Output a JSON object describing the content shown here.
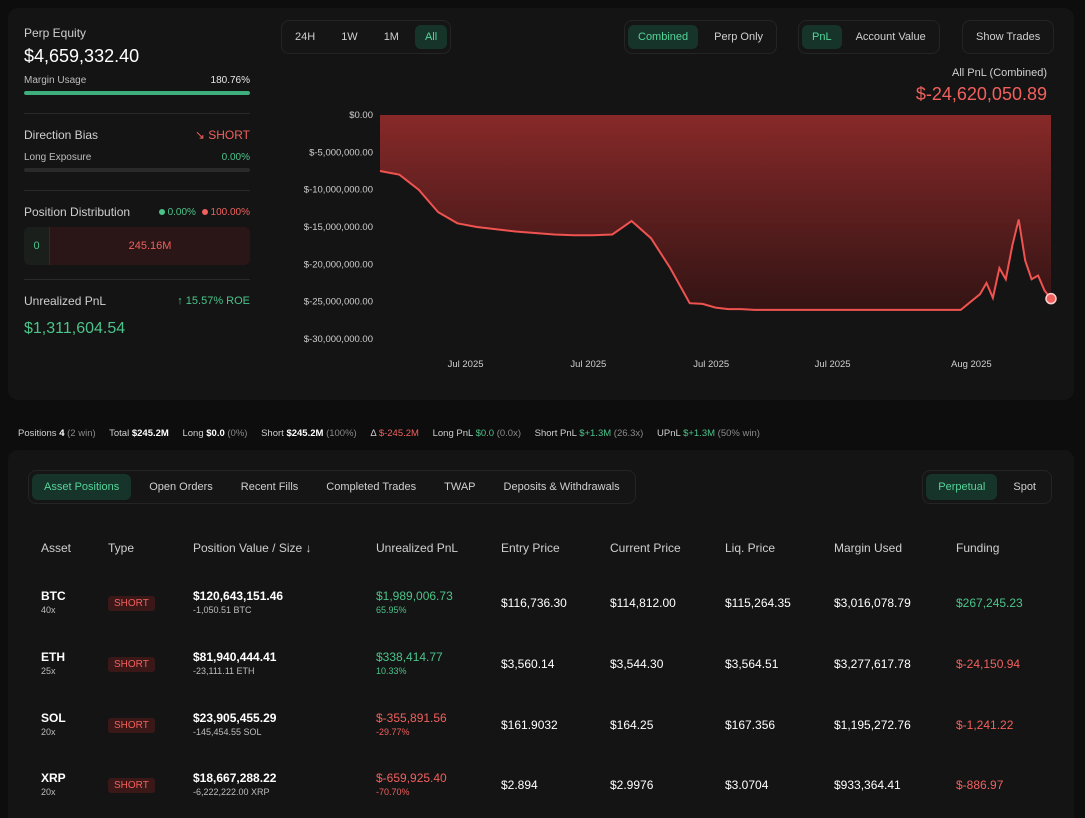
{
  "stats": {
    "perp_equity_label": "Perp Equity",
    "perp_equity_value": "$4,659,332.40",
    "margin_usage_label": "Margin Usage",
    "margin_usage_value": "180.76%",
    "margin_usage_fill": 1.0,
    "direction_bias_label": "Direction Bias",
    "direction_bias_value": "SHORT",
    "long_exposure_label": "Long Exposure",
    "long_exposure_value": "0.00%",
    "position_distribution_label": "Position Distribution",
    "dist_long_pct": "0.00%",
    "dist_short_pct": "100.00%",
    "dist_long_amount": "0",
    "dist_short_amount": "245.16M",
    "unrealized_pnl_label": "Unrealized PnL",
    "roe": "15.57% ROE",
    "unrealized_pnl_value": "$1,311,604.54"
  },
  "toolbar": {
    "ranges": [
      "24H",
      "1W",
      "1M",
      "All"
    ],
    "active_range": "All",
    "combined": "Combined",
    "perp_only": "Perp Only",
    "pnl": "PnL",
    "account_value": "Account Value",
    "show_trades": "Show Trades"
  },
  "chart_header": {
    "title": "All PnL (Combined)",
    "total": "$-24,620,050.89"
  },
  "chart_data": {
    "type": "area",
    "y_ticks": [
      "$0.00",
      "$-5,000,000.00",
      "$-10,000,000.00",
      "$-15,000,000.00",
      "$-20,000,000.00",
      "$-25,000,000.00",
      "$-30,000,000.00"
    ],
    "x_ticks": [
      "Jul 2025",
      "Jul 2025",
      "Jul 2025",
      "Jul 2025",
      "Aug 2025"
    ],
    "ylim": [
      -30000000,
      0
    ],
    "x": [
      0,
      3,
      6,
      9,
      12,
      15,
      18,
      21,
      24,
      27,
      30,
      33,
      36,
      39,
      42,
      45,
      48,
      50,
      52,
      54,
      56,
      58,
      60,
      62,
      65,
      70,
      75,
      80,
      85,
      90,
      93,
      94,
      95,
      96,
      97,
      98,
      99,
      100,
      101,
      102,
      103,
      104
    ],
    "values": [
      -7500000,
      -8000000,
      -10000000,
      -13000000,
      -14500000,
      -15000000,
      -15300000,
      -15600000,
      -15800000,
      -16000000,
      -16100000,
      -16100000,
      -16000000,
      -14200000,
      -16500000,
      -20500000,
      -25200000,
      -25300000,
      -25800000,
      -26000000,
      -26000000,
      -26100000,
      -26100000,
      -26100000,
      -26100000,
      -26100000,
      -26100000,
      -26100000,
      -26100000,
      -26100000,
      -24000000,
      -22500000,
      -24500000,
      -20500000,
      -22000000,
      -17500000,
      -14000000,
      -19500000,
      -22000000,
      -21500000,
      -23500000,
      -24600000
    ],
    "series_color": "#ef5350"
  },
  "summary": {
    "positions_label": "Positions",
    "positions_count": "4",
    "positions_win": "(2 win)",
    "total_label": "Total",
    "total_value": "$245.2M",
    "long_label": "Long",
    "long_value": "$0.0",
    "long_pct": "(0%)",
    "short_label": "Short",
    "short_value": "$245.2M",
    "short_pct": "(100%)",
    "delta_label": "Δ",
    "delta_value": "$-245.2M",
    "long_pnl_label": "Long PnL",
    "long_pnl_value": "$0.0",
    "long_pnl_x": "(0.0x)",
    "short_pnl_label": "Short PnL",
    "short_pnl_value": "$+1.3M",
    "short_pnl_x": "(26.3x)",
    "upnl_label": "UPnL",
    "upnl_value": "$+1.3M",
    "upnl_win": "(50% win)"
  },
  "tabs": [
    "Asset Positions",
    "Open Orders",
    "Recent Fills",
    "Completed Trades",
    "TWAP",
    "Deposits & Withdrawals"
  ],
  "active_tab": "Asset Positions",
  "market_tabs": [
    "Perpetual",
    "Spot"
  ],
  "active_market": "Perpetual",
  "table": {
    "headers": [
      "Asset",
      "Type",
      "Position Value / Size ↓",
      "Unrealized PnL",
      "Entry Price",
      "Current Price",
      "Liq. Price",
      "Margin Used",
      "Funding"
    ],
    "rows": [
      {
        "asset": "BTC",
        "lev": "40x",
        "type": "SHORT",
        "value": "$120,643,151.46",
        "size": "-1,050.51 BTC",
        "pnl": "$1,989,006.73",
        "pnl_pct": "65.95%",
        "pnl_positive": true,
        "entry": "$116,736.30",
        "current": "$114,812.00",
        "liq": "$115,264.35",
        "margin": "$3,016,078.79",
        "funding": "$267,245.23",
        "funding_positive": true
      },
      {
        "asset": "ETH",
        "lev": "25x",
        "type": "SHORT",
        "value": "$81,940,444.41",
        "size": "-23,111.11 ETH",
        "pnl": "$338,414.77",
        "pnl_pct": "10.33%",
        "pnl_positive": true,
        "entry": "$3,560.14",
        "current": "$3,544.30",
        "liq": "$3,564.51",
        "margin": "$3,277,617.78",
        "funding": "$-24,150.94",
        "funding_positive": false
      },
      {
        "asset": "SOL",
        "lev": "20x",
        "type": "SHORT",
        "value": "$23,905,455.29",
        "size": "-145,454.55 SOL",
        "pnl": "$-355,891.56",
        "pnl_pct": "-29.77%",
        "pnl_positive": false,
        "entry": "$161.9032",
        "current": "$164.25",
        "liq": "$167.356",
        "margin": "$1,195,272.76",
        "funding": "$-1,241.22",
        "funding_positive": false
      },
      {
        "asset": "XRP",
        "lev": "20x",
        "type": "SHORT",
        "value": "$18,667,288.22",
        "size": "-6,222,222.00 XRP",
        "pnl": "$-659,925.40",
        "pnl_pct": "-70.70%",
        "pnl_positive": false,
        "entry": "$2.894",
        "current": "$2.9976",
        "liq": "$3.0704",
        "margin": "$933,364.41",
        "funding": "$-886.97",
        "funding_positive": false
      }
    ]
  }
}
